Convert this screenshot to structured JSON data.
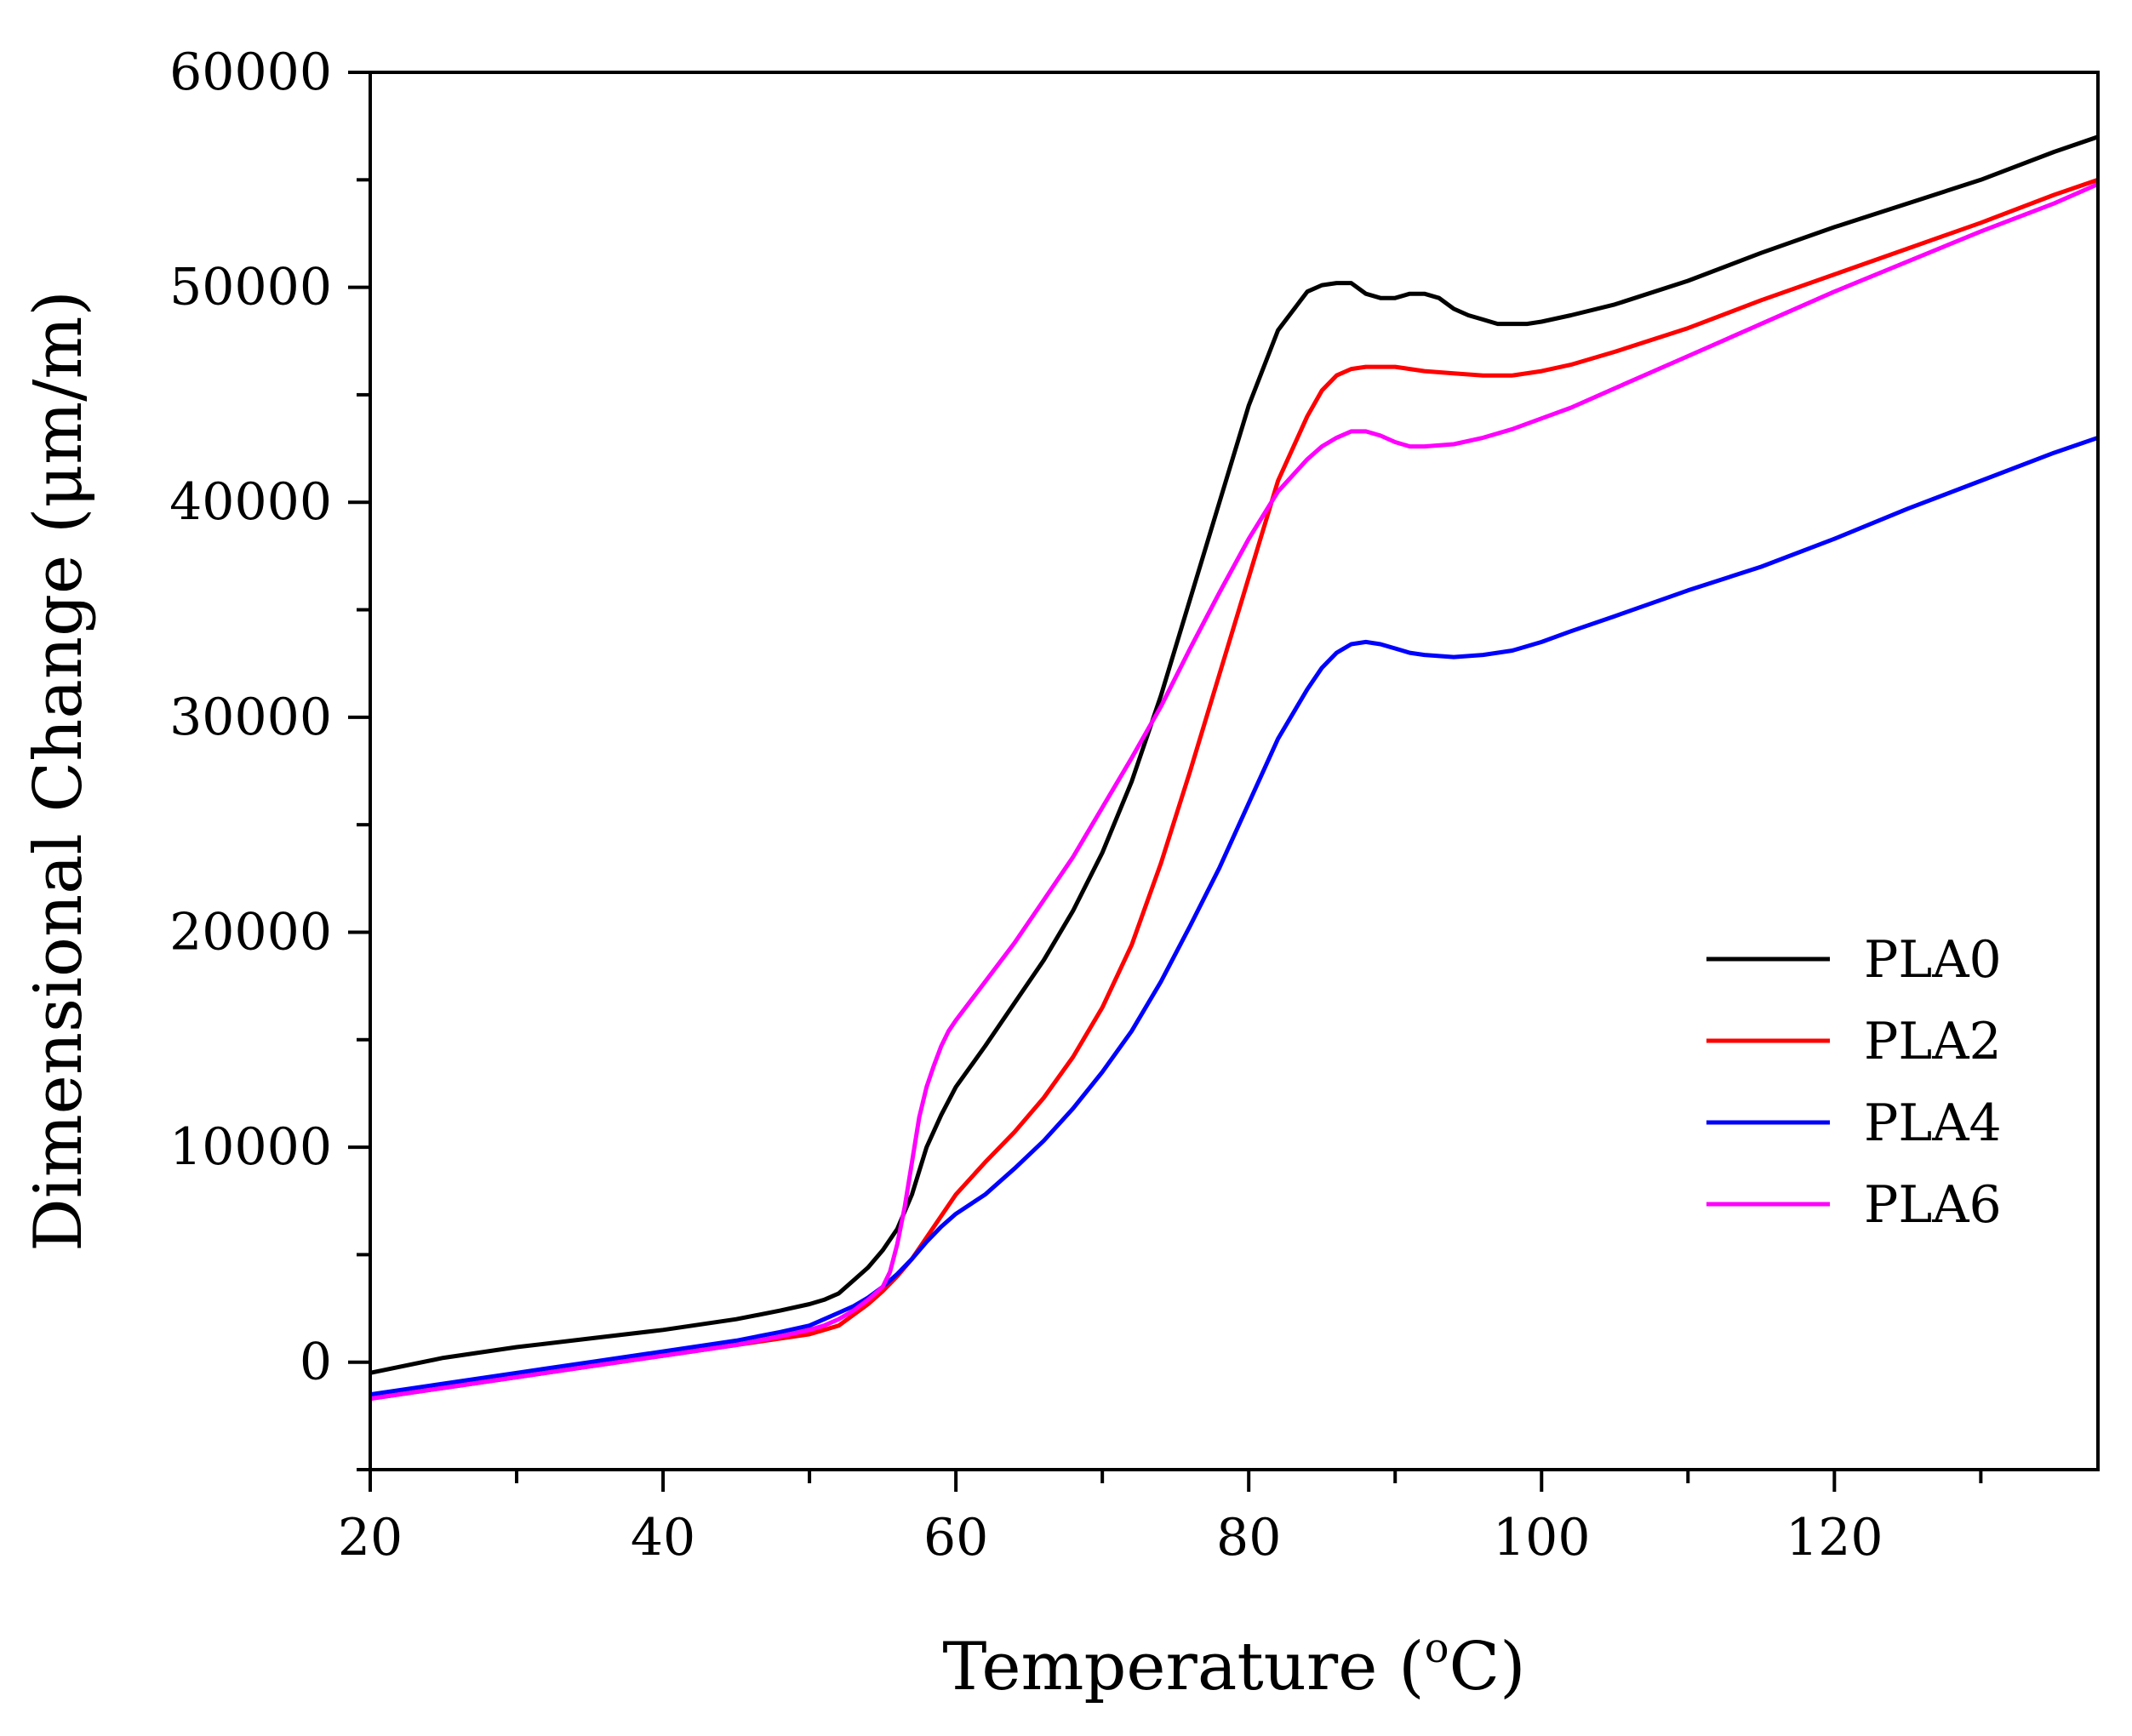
{
  "chart_data": {
    "type": "line",
    "title": "",
    "xlabel": "Temperature (",
    "xlabel_sup": "o",
    "xlabel_tail": "C)",
    "ylabel": "Dimensional Change (μm/m)",
    "xlim": [
      20,
      138
    ],
    "ylim": [
      -5000,
      60000
    ],
    "x_ticks": [
      20,
      40,
      60,
      80,
      100,
      120
    ],
    "x_tick_labels": [
      "20",
      "40",
      "60",
      "80",
      "100",
      "120"
    ],
    "y_ticks": [
      0,
      10000,
      20000,
      30000,
      40000,
      50000,
      60000
    ],
    "y_tick_labels": [
      "0",
      "10000",
      "20000",
      "30000",
      "40000",
      "50000",
      "60000"
    ],
    "legend_position": "right",
    "series": [
      {
        "name": "PLA0",
        "color": "#000000",
        "x": [
          20,
          25,
          30,
          35,
          40,
          45,
          48,
          50,
          51,
          52,
          53,
          54,
          55,
          56,
          57,
          58,
          59,
          60,
          62,
          64,
          66,
          68,
          70,
          72,
          74,
          76,
          78,
          80,
          82,
          84,
          85,
          86,
          87,
          88,
          89,
          90,
          91,
          92,
          93,
          94,
          95,
          96,
          97,
          98,
          99,
          100,
          102,
          105,
          110,
          115,
          120,
          125,
          130,
          135,
          138
        ],
        "y": [
          -500,
          200,
          700,
          1100,
          1500,
          2000,
          2400,
          2700,
          2900,
          3200,
          3800,
          4400,
          5200,
          6200,
          7800,
          10000,
          11500,
          12800,
          14700,
          16700,
          18700,
          21000,
          23700,
          27000,
          31000,
          35500,
          40000,
          44500,
          48000,
          49800,
          50100,
          50200,
          50200,
          49700,
          49500,
          49500,
          49700,
          49700,
          49500,
          49000,
          48700,
          48500,
          48300,
          48300,
          48300,
          48400,
          48700,
          49200,
          50300,
          51600,
          52800,
          53900,
          55000,
          56300,
          57000
        ]
      },
      {
        "name": "PLA2",
        "color": "#ff0000",
        "x": [
          20,
          25,
          30,
          35,
          40,
          45,
          48,
          50,
          51,
          52,
          53,
          54,
          55,
          56,
          57,
          58,
          59,
          60,
          62,
          64,
          66,
          68,
          70,
          72,
          74,
          76,
          78,
          80,
          82,
          84,
          85,
          86,
          87,
          88,
          89,
          90,
          91,
          92,
          94,
          96,
          98,
          100,
          102,
          105,
          110,
          115,
          120,
          125,
          130,
          135,
          138
        ],
        "y": [
          -1700,
          -1200,
          -700,
          -200,
          300,
          800,
          1100,
          1300,
          1500,
          1700,
          2200,
          2700,
          3300,
          4000,
          4800,
          5800,
          6800,
          7800,
          9300,
          10700,
          12300,
          14200,
          16500,
          19400,
          23200,
          27500,
          32000,
          36500,
          41000,
          44000,
          45200,
          45900,
          46200,
          46300,
          46300,
          46300,
          46200,
          46100,
          46000,
          45900,
          45900,
          46100,
          46400,
          47000,
          48100,
          49400,
          50600,
          51800,
          53000,
          54300,
          55000
        ]
      },
      {
        "name": "PLA4",
        "color": "#0000ff",
        "x": [
          20,
          25,
          30,
          35,
          40,
          45,
          48,
          50,
          51,
          52,
          53,
          54,
          55,
          56,
          57,
          58,
          59,
          60,
          62,
          64,
          66,
          68,
          70,
          72,
          74,
          76,
          78,
          80,
          82,
          84,
          85,
          86,
          87,
          88,
          89,
          90,
          91,
          92,
          94,
          96,
          98,
          100,
          102,
          105,
          110,
          115,
          120,
          125,
          130,
          135,
          138
        ],
        "y": [
          -1500,
          -1000,
          -500,
          0,
          500,
          1000,
          1400,
          1700,
          2000,
          2300,
          2600,
          3000,
          3500,
          4100,
          4800,
          5600,
          6300,
          6900,
          7800,
          9000,
          10300,
          11800,
          13500,
          15400,
          17700,
          20300,
          23000,
          26000,
          29000,
          31300,
          32300,
          33000,
          33400,
          33500,
          33400,
          33200,
          33000,
          32900,
          32800,
          32900,
          33100,
          33500,
          34000,
          34700,
          35900,
          37000,
          38300,
          39700,
          41000,
          42300,
          43000
        ]
      },
      {
        "name": "PLA6",
        "color": "#ff00ff",
        "x": [
          20,
          25,
          30,
          35,
          40,
          45,
          48,
          50,
          51,
          52,
          53,
          54,
          55,
          55.5,
          56,
          56.5,
          57,
          57.5,
          58,
          58.5,
          59,
          59.5,
          60,
          62,
          64,
          66,
          68,
          70,
          72,
          74,
          76,
          78,
          80,
          82,
          84,
          85,
          86,
          87,
          88,
          89,
          90,
          91,
          92,
          94,
          96,
          98,
          100,
          102,
          105,
          110,
          115,
          120,
          125,
          130,
          135,
          138
        ],
        "y": [
          -1700,
          -1200,
          -700,
          -200,
          300,
          800,
          1200,
          1500,
          1700,
          2000,
          2400,
          2900,
          3500,
          4200,
          5500,
          7200,
          9300,
          11400,
          12800,
          13800,
          14700,
          15400,
          15900,
          17700,
          19500,
          21500,
          23500,
          25800,
          28100,
          30500,
          33200,
          35800,
          38300,
          40500,
          42000,
          42600,
          43000,
          43300,
          43300,
          43100,
          42800,
          42600,
          42600,
          42700,
          43000,
          43400,
          43900,
          44400,
          45300,
          46800,
          48300,
          49800,
          51200,
          52600,
          53900,
          54800
        ]
      }
    ]
  }
}
